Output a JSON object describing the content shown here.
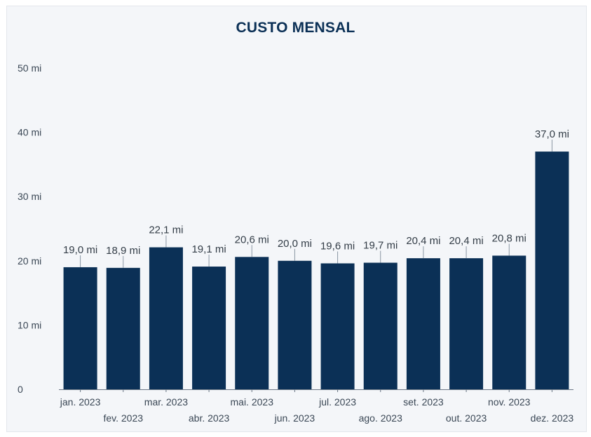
{
  "chart_data": {
    "type": "bar",
    "title": "CUSTO MENSAL",
    "xlabel": "",
    "ylabel": "",
    "ylim": [
      0,
      50
    ],
    "yticks": [
      {
        "value": 0,
        "label": "0"
      },
      {
        "value": 10,
        "label": "10 mi"
      },
      {
        "value": 20,
        "label": "20 mi"
      },
      {
        "value": 30,
        "label": "30 mi"
      },
      {
        "value": 40,
        "label": "40 mi"
      },
      {
        "value": 50,
        "label": "50 mi"
      }
    ],
    "categories": [
      "jan. 2023",
      "fev. 2023",
      "mar. 2023",
      "abr. 2023",
      "mai. 2023",
      "jun. 2023",
      "jul. 2023",
      "ago. 2023",
      "set. 2023",
      "out. 2023",
      "nov. 2023",
      "dez. 2023"
    ],
    "values": [
      19.0,
      18.9,
      22.1,
      19.1,
      20.6,
      20.0,
      19.6,
      19.7,
      20.4,
      20.4,
      20.8,
      37.0
    ],
    "data_labels": [
      "19,0 mi",
      "18,9 mi",
      "22,1 mi",
      "19,1 mi",
      "20,6 mi",
      "20,0 mi",
      "19,6 mi",
      "19,7 mi",
      "20,4 mi",
      "20,4 mi",
      "20,8 mi",
      "37,0 mi"
    ],
    "grid": false,
    "legend": "none",
    "colors": {
      "bar": "#0b3056",
      "axis": "#6b7785",
      "background": "#f4f6f9",
      "title": "#0b3056"
    }
  }
}
